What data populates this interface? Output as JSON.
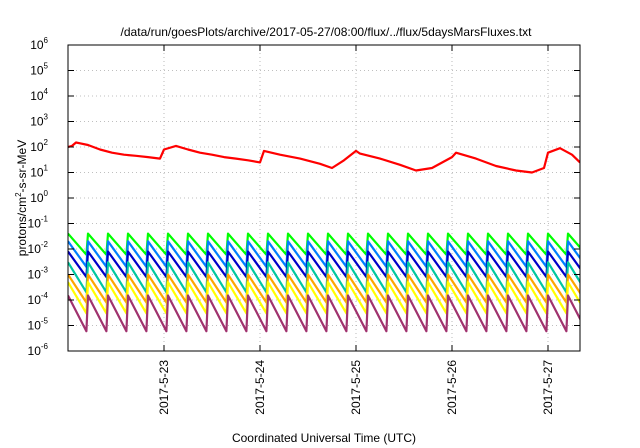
{
  "chart_data": {
    "type": "line",
    "title": "/data/run/goesPlots/archive/2017-05-27/08:00/flux/../flux/5daysMarsFluxes.txt",
    "xlabel": "Coordinated Universal Time (UTC)",
    "ylabel": {
      "prefix": "protons/cm",
      "sup": "2",
      "suffix": "-s-sr-MeV"
    },
    "y_scale": "log",
    "ylim": [
      1e-06,
      1000000.0
    ],
    "y_ticks": [
      {
        "base": "10",
        "exp": "6"
      },
      {
        "base": "10",
        "exp": "5"
      },
      {
        "base": "10",
        "exp": "4"
      },
      {
        "base": "10",
        "exp": "3"
      },
      {
        "base": "10",
        "exp": "2"
      },
      {
        "base": "10",
        "exp": "1"
      },
      {
        "base": "10",
        "exp": "0"
      },
      {
        "base": "10",
        "exp": "-1"
      },
      {
        "base": "10",
        "exp": "-2"
      },
      {
        "base": "10",
        "exp": "-3"
      },
      {
        "base": "10",
        "exp": "-4"
      },
      {
        "base": "10",
        "exp": "-5"
      },
      {
        "base": "10",
        "exp": "-6"
      }
    ],
    "xlim": [
      "2017-05-22T00:00",
      "2017-05-27T08:00"
    ],
    "x_ticks": [
      "2017-5-23",
      "2017-5-24",
      "2017-5-25",
      "2017-5-26",
      "2017-5-27"
    ],
    "grid": true,
    "series": [
      {
        "color": "#ff0000",
        "x": [
          "2017-05-22T00:00",
          "2017-05-22T01:00",
          "2017-05-22T02:00",
          "2017-05-22T03:00",
          "2017-05-22T05:00",
          "2017-05-22T08:00",
          "2017-05-22T11:00",
          "2017-05-22T14:00",
          "2017-05-22T17:00",
          "2017-05-22T20:00",
          "2017-05-22T23:00",
          "2017-05-23T00:00",
          "2017-05-23T03:00",
          "2017-05-23T06:00",
          "2017-05-23T09:00",
          "2017-05-23T12:00",
          "2017-05-23T15:00",
          "2017-05-23T18:00",
          "2017-05-23T21:00",
          "2017-05-24T00:00",
          "2017-05-24T01:00",
          "2017-05-24T05:00",
          "2017-05-24T10:00",
          "2017-05-24T15:00",
          "2017-05-24T18:00",
          "2017-05-24T21:00",
          "2017-05-25T00:00",
          "2017-05-25T01:00",
          "2017-05-25T06:00",
          "2017-05-25T11:00",
          "2017-05-25T15:00",
          "2017-05-25T19:00",
          "2017-05-26T00:00",
          "2017-05-26T01:00",
          "2017-05-26T06:00",
          "2017-05-26T11:00",
          "2017-05-26T16:00",
          "2017-05-26T20:00",
          "2017-05-26T23:00",
          "2017-05-27T00:00",
          "2017-05-27T03:00",
          "2017-05-27T06:00",
          "2017-05-27T08:00"
        ],
        "y": [
          100,
          110,
          150,
          140,
          120,
          80,
          60,
          50,
          45,
          40,
          35,
          80,
          110,
          80,
          60,
          50,
          40,
          35,
          30,
          25,
          70,
          50,
          35,
          22,
          15,
          30,
          70,
          55,
          35,
          20,
          12,
          15,
          40,
          60,
          35,
          18,
          12,
          10,
          15,
          60,
          90,
          50,
          25
        ]
      },
      {
        "color": "#00ff00",
        "min": 0.006,
        "max": 0.04,
        "period_hours": 5
      },
      {
        "color": "#007fff",
        "min": 0.002,
        "max": 0.02,
        "period_hours": 5
      },
      {
        "color": "#0000c8",
        "min": 0.0008,
        "max": 0.008,
        "period_hours": 5
      },
      {
        "color": "#00c8a0",
        "min": 0.0002,
        "max": 0.003,
        "period_hours": 5
      },
      {
        "color": "#ffa500",
        "min": 8e-05,
        "max": 0.001,
        "period_hours": 5
      },
      {
        "color": "#ffff00",
        "min": 3e-05,
        "max": 0.0005,
        "period_hours": 5
      },
      {
        "color": "#a0326e",
        "min": 6e-06,
        "max": 0.00015,
        "period_hours": 5
      }
    ]
  }
}
